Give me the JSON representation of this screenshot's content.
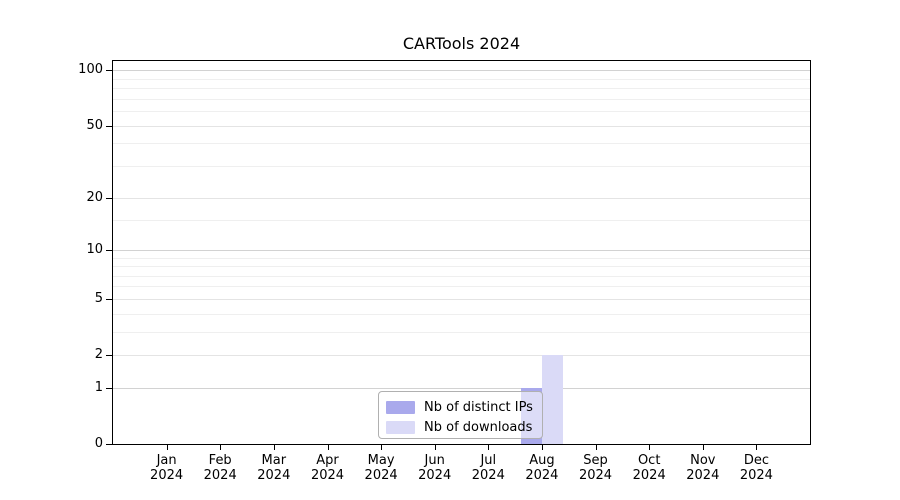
{
  "chart_data": {
    "type": "bar",
    "title": "CARTools 2024",
    "x_months": [
      "Jan",
      "Feb",
      "Mar",
      "Apr",
      "May",
      "Jun",
      "Jul",
      "Aug",
      "Sep",
      "Oct",
      "Nov",
      "Dec"
    ],
    "x_year": "2024",
    "y_ticks": [
      0,
      1,
      2,
      5,
      10,
      20,
      50,
      100
    ],
    "y_minor_ticks": [
      3,
      4,
      6,
      7,
      8,
      9,
      15,
      30,
      40,
      60,
      70,
      80,
      90
    ],
    "ylim": [
      0,
      112.3
    ],
    "y_scale": "log1p",
    "grid": true,
    "legend_position": "lower center",
    "series": [
      {
        "name": "Nb of distinct IPs",
        "color": "#a9a9ec",
        "values": [
          0,
          0,
          0,
          0,
          0,
          0,
          0,
          1,
          0,
          0,
          0,
          0
        ]
      },
      {
        "name": "Nb of downloads",
        "color": "#dadaf7",
        "values": [
          0,
          0,
          0,
          0,
          0,
          0,
          0,
          2,
          0,
          0,
          0,
          0
        ]
      }
    ]
  },
  "colors": {
    "grid_decade": "#d2d2d2",
    "grid_major": "#e4e4e4",
    "grid_minor": "#efefef",
    "axis": "#000000",
    "legend_border": "#b0b0b0"
  }
}
